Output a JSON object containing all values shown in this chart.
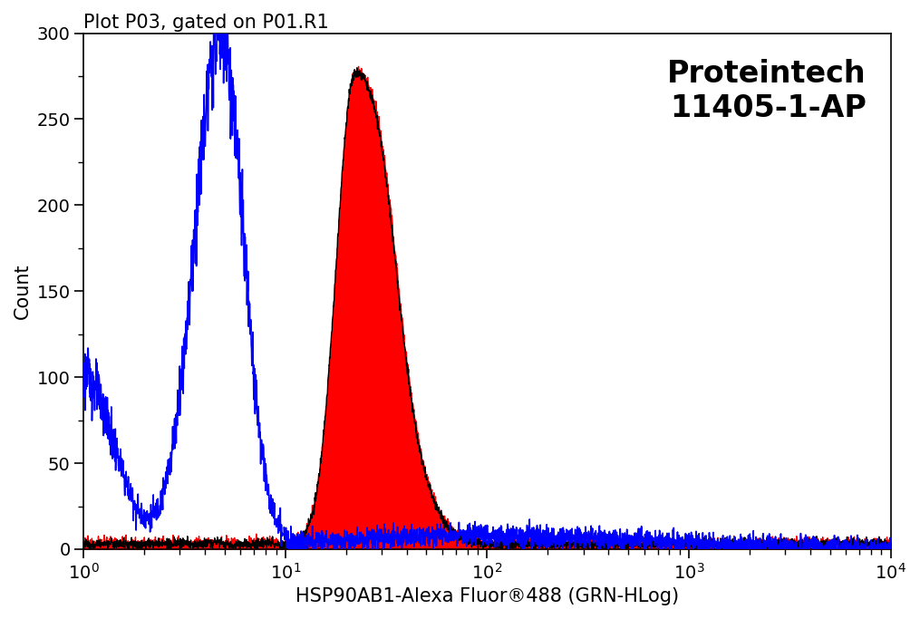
{
  "title": "Plot P03, gated on P01.R1",
  "xlabel": "HSP90AB1-Alexa Fluor®488 (GRN-HLog)",
  "ylabel": "Count",
  "annotation_line1": "Proteintech",
  "annotation_line2": "11405-1-AP",
  "xmin": 1.0,
  "xmax": 10000.0,
  "ymin": 0,
  "ymax": 300,
  "yticks": [
    0,
    50,
    100,
    150,
    200,
    250,
    300
  ],
  "blue_color": "#0000ff",
  "red_color": "#ff0000",
  "black_color": "#000000",
  "bg_color": "#ffffff",
  "title_fontsize": 15,
  "label_fontsize": 15,
  "tick_fontsize": 14,
  "annot_fontsize": 24
}
